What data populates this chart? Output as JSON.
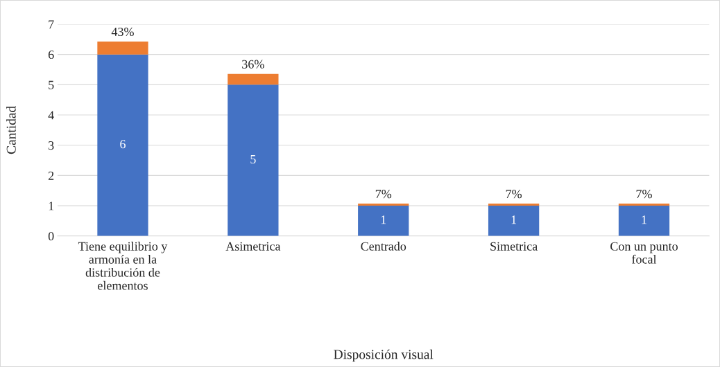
{
  "chart_data": {
    "type": "bar",
    "stacked": true,
    "xlabel": "Disposición visual",
    "ylabel": "Cantidad",
    "categories": [
      "Tiene equilibrio y\narmonía en la\ndistribución de\nelementos",
      "Asimetrica",
      "Centrado",
      "Simetrica",
      "Con un punto\nfocal"
    ],
    "series": [
      {
        "color": "#4472c4",
        "values": [
          6,
          5,
          1,
          1,
          1
        ],
        "value_labels": [
          "6",
          "5",
          "1",
          "1",
          "1"
        ]
      },
      {
        "color": "#ed7d31",
        "values": [
          0.43,
          0.36,
          0.07,
          0.07,
          0.07
        ],
        "value_labels": [
          "43%",
          "36%",
          "7%",
          "7%",
          "7%"
        ]
      }
    ],
    "ylim": [
      0,
      7
    ],
    "yticks": [
      0,
      1,
      2,
      3,
      4,
      5,
      6,
      7
    ],
    "grid": "y"
  }
}
